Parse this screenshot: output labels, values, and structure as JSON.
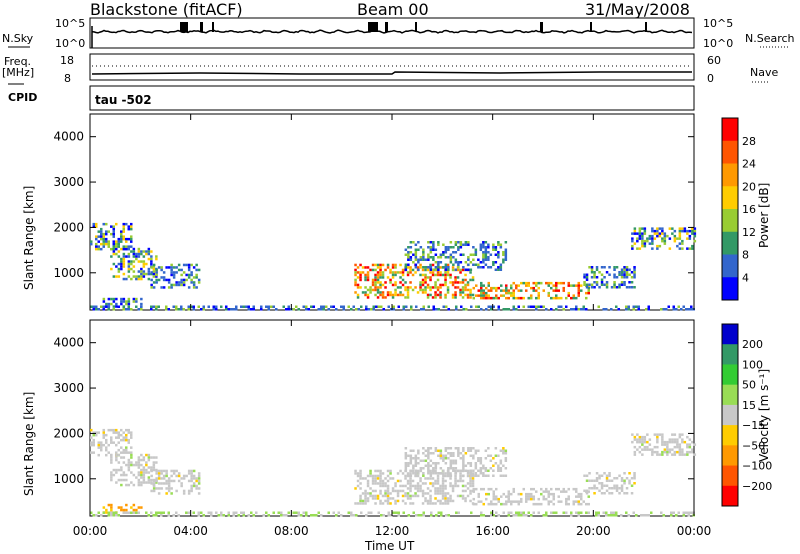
{
  "header": {
    "station": "Blackstone (fitACF)",
    "beam": "Beam 00",
    "date": "31/May/2008"
  },
  "panels": {
    "nsky_label": "N.Sky",
    "nsearch_label": "N.Search",
    "freq_label": "Freq.",
    "freq_unit": "[MHz]",
    "nave_label": "Nave",
    "cpid_label": "CPID",
    "cpid_value": "tau -502",
    "nsky_ticks": [
      "10^5",
      "10^0"
    ],
    "nsearch_ticks": [
      "10^5",
      "10^0"
    ],
    "freq_ticks": [
      "18",
      "8"
    ],
    "nave_ticks": [
      "60",
      "0"
    ]
  },
  "chart_data": [
    {
      "type": "heatmap",
      "name": "power",
      "ylabel": "Slant Range [km]",
      "yticks": [
        1000,
        2000,
        3000,
        4000
      ],
      "ylim": [
        180,
        4500
      ],
      "xlim": [
        0,
        24
      ],
      "xticks": [
        0,
        4,
        8,
        12,
        16,
        20,
        24
      ],
      "colorbar": {
        "label": "Power [dB]",
        "ticks": [
          "28",
          "24",
          "20",
          "16",
          "12",
          "8",
          "4"
        ],
        "colors": [
          "#ff0000",
          "#ff5500",
          "#ff9900",
          "#ffcc00",
          "#99cc33",
          "#339966",
          "#3366cc",
          "#0000ff"
        ]
      },
      "regions": [
        {
          "x": [
            0.0,
            1.6
          ],
          "y": [
            1500,
            2100
          ],
          "level": "med"
        },
        {
          "x": [
            0.8,
            2.6
          ],
          "y": [
            850,
            1550
          ],
          "level": "med"
        },
        {
          "x": [
            2.4,
            4.3
          ],
          "y": [
            700,
            1200
          ],
          "level": "low"
        },
        {
          "x": [
            0.5,
            2.0
          ],
          "y": [
            250,
            450
          ],
          "level": "low"
        },
        {
          "x": [
            10.5,
            15.2
          ],
          "y": [
            450,
            1200
          ],
          "level": "high"
        },
        {
          "x": [
            12.5,
            16.5
          ],
          "y": [
            1050,
            1700
          ],
          "level": "low"
        },
        {
          "x": [
            15.2,
            19.8
          ],
          "y": [
            450,
            800
          ],
          "level": "high"
        },
        {
          "x": [
            19.6,
            21.6
          ],
          "y": [
            700,
            1150
          ],
          "level": "low"
        },
        {
          "x": [
            21.5,
            24.0
          ],
          "y": [
            1550,
            2000
          ],
          "level": "med"
        },
        {
          "x": [
            0.0,
            24.0
          ],
          "y": [
            180,
            280
          ],
          "level": "low"
        }
      ]
    },
    {
      "type": "heatmap",
      "name": "velocity",
      "ylabel": "Slant Range [km]",
      "yticks": [
        1000,
        2000,
        3000,
        4000
      ],
      "ylim": [
        180,
        4500
      ],
      "xlim": [
        0,
        24
      ],
      "xticks": [
        0,
        4,
        8,
        12,
        16,
        20,
        24
      ],
      "xticklabels": [
        "00:00",
        "04:00",
        "08:00",
        "12:00",
        "16:00",
        "20:00",
        "00:00"
      ],
      "xlabel": "Time UT",
      "colorbar": {
        "label": "Velocity [m s⁻¹]",
        "ticks": [
          "200",
          "100",
          "50",
          "15",
          "−15",
          "−50",
          "−100",
          "−200"
        ],
        "colors": [
          "#0000cc",
          "#339966",
          "#33cc33",
          "#99dd55",
          "#c8c8c8",
          "#ffcc00",
          "#ff9900",
          "#ff5500",
          "#ff0000"
        ]
      },
      "regions": [
        {
          "x": [
            0.0,
            1.6
          ],
          "y": [
            1500,
            2100
          ],
          "level": "gray"
        },
        {
          "x": [
            0.8,
            2.6
          ],
          "y": [
            850,
            1550
          ],
          "level": "gray"
        },
        {
          "x": [
            2.4,
            4.3
          ],
          "y": [
            700,
            1200
          ],
          "level": "gray"
        },
        {
          "x": [
            0.5,
            2.0
          ],
          "y": [
            250,
            450
          ],
          "level": "orange"
        },
        {
          "x": [
            10.5,
            15.2
          ],
          "y": [
            450,
            1200
          ],
          "level": "gray"
        },
        {
          "x": [
            12.5,
            16.5
          ],
          "y": [
            1050,
            1700
          ],
          "level": "gray"
        },
        {
          "x": [
            15.2,
            19.8
          ],
          "y": [
            450,
            800
          ],
          "level": "gray"
        },
        {
          "x": [
            19.6,
            21.6
          ],
          "y": [
            700,
            1150
          ],
          "level": "gray"
        },
        {
          "x": [
            21.5,
            24.0
          ],
          "y": [
            1550,
            2000
          ],
          "level": "gray"
        },
        {
          "x": [
            0.0,
            24.0
          ],
          "y": [
            180,
            280
          ],
          "level": "green"
        }
      ]
    }
  ]
}
